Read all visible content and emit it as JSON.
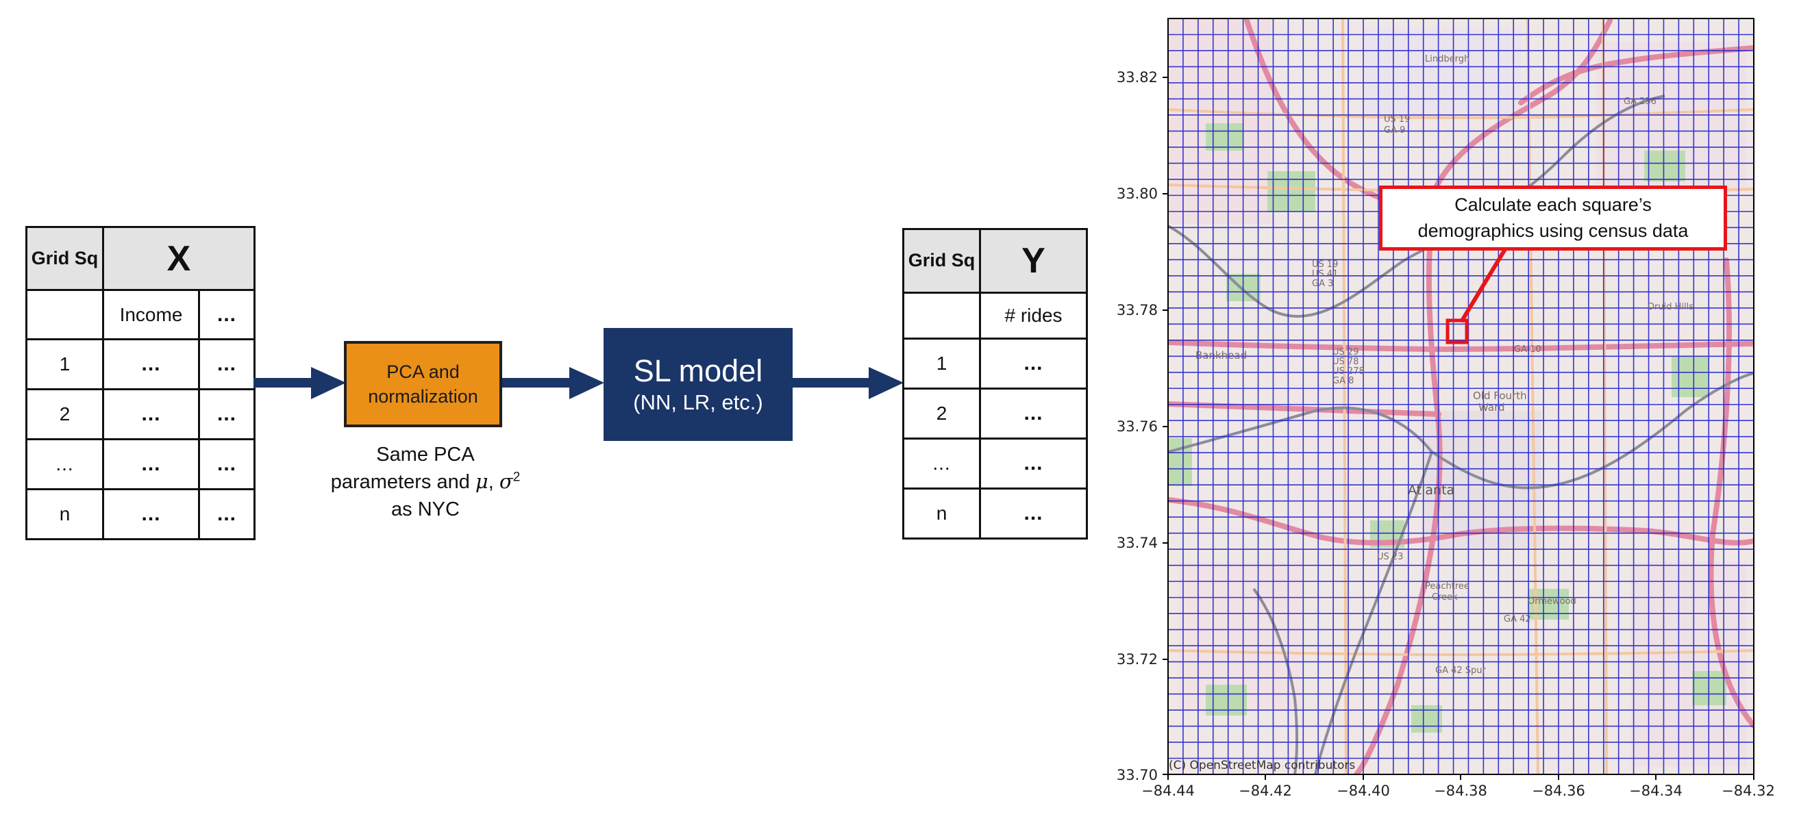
{
  "table_x": {
    "header_left": "Grid Sq",
    "header_right": "X",
    "subheader": "Income",
    "ellipsis": "...",
    "row_labels": [
      "1",
      "2",
      "...",
      "n"
    ]
  },
  "pca_box": {
    "line1": "PCA and",
    "line2": "normalization"
  },
  "pca_note": {
    "line1": "Same PCA",
    "line2_prefix": "parameters and",
    "mu": "μ",
    "sigma": "σ",
    "sup": "2",
    "line3": "as NYC"
  },
  "sl_box": {
    "title": "SL model",
    "subtitle": "(NN, LR, etc.)"
  },
  "table_y": {
    "header_left": "Grid Sq",
    "header_right": "Y",
    "subheader": "# rides",
    "ellipsis": "...",
    "row_labels": [
      "1",
      "2",
      "...",
      "n"
    ]
  },
  "map": {
    "y_ticks": [
      "33.82",
      "33.80",
      "33.78",
      "33.76",
      "33.74",
      "33.72",
      "33.70"
    ],
    "x_ticks": [
      "−84.44",
      "−84.42",
      "−84.40",
      "−84.38",
      "−84.36",
      "−84.34",
      "−84.32"
    ],
    "callout_line1": "Calculate each square’s",
    "callout_line2": "demographics using census data",
    "credit": "(C) OpenStreetMap contributors",
    "labels": [
      "Lindbergh",
      "GA 236",
      "US 19",
      "GA 9",
      "US 19",
      "US 41",
      "GA 3",
      "Druid Hills",
      "GA 10",
      "US 29",
      "US 78",
      "US 278",
      "GA 8",
      "Bankhead",
      "Old Fourth",
      "Ward",
      "Atlanta",
      "Peachtree",
      "Creek",
      "GA 42 Spur",
      "Ormewood",
      "GA 42",
      "US 23"
    ],
    "colors": {
      "grid": "#2222cc",
      "accent": "#e8141a",
      "arrow": "#1a3568",
      "pca": "#ea8f17"
    }
  }
}
